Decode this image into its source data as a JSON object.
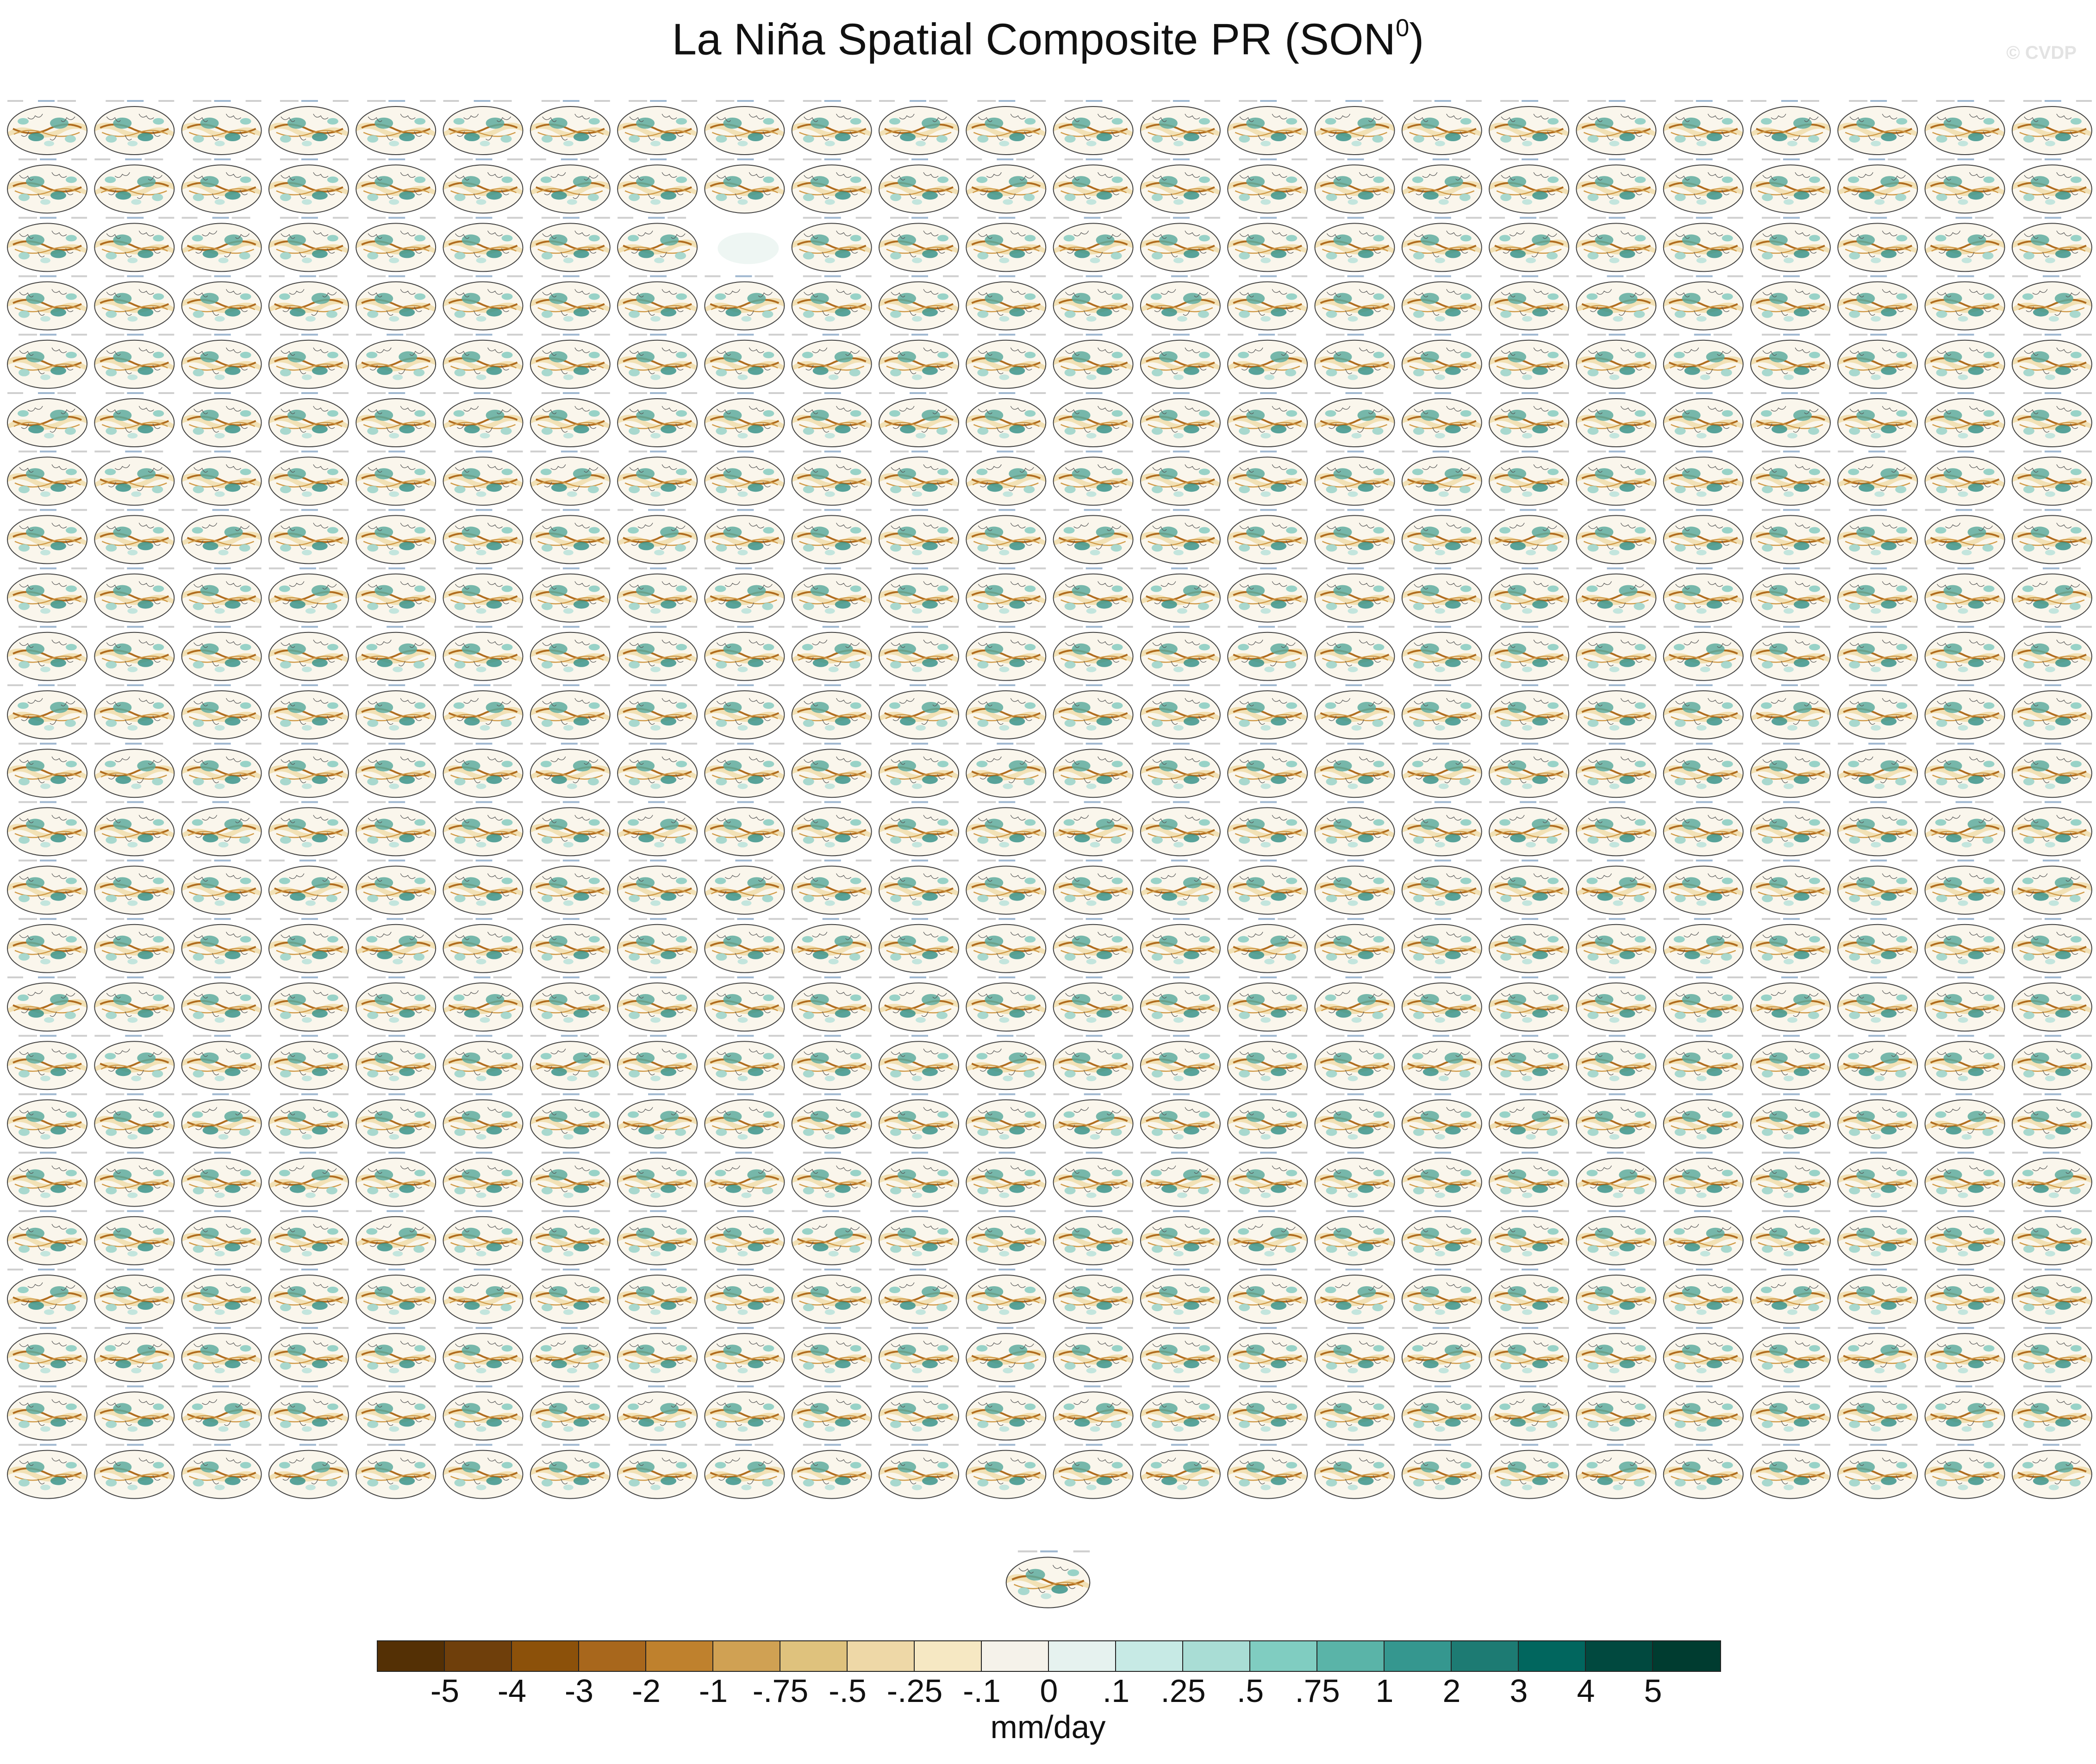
{
  "title": {
    "main": "La Niña Spatial Composite PR (SON",
    "superscript": "0",
    "close": ")"
  },
  "watermark": "© CVDP",
  "panels": {
    "rows": 24,
    "columns": 24,
    "blank_panel": {
      "row": 3,
      "column": 9
    },
    "extra_centered_panel": true
  },
  "colorbar": {
    "units": "mm/day",
    "labels": [
      "-5",
      "-4",
      "-3",
      "-2",
      "-1",
      "-.75",
      "-.5",
      "-.25",
      "-.1",
      "0",
      ".1",
      ".25",
      ".5",
      ".75",
      "1",
      "2",
      "3",
      "4",
      "5"
    ],
    "colors": [
      "#543005",
      "#6f3f0b",
      "#8c510a",
      "#a8671c",
      "#bf812d",
      "#d0a153",
      "#dfc27d",
      "#eed8a7",
      "#f6e8c3",
      "#f5f2ea",
      "#e6f2ef",
      "#c7eae5",
      "#a9ddd5",
      "#80cdc1",
      "#5ab4a8",
      "#35978f",
      "#1d7b73",
      "#01665e",
      "#01493f",
      "#003c30"
    ]
  }
}
